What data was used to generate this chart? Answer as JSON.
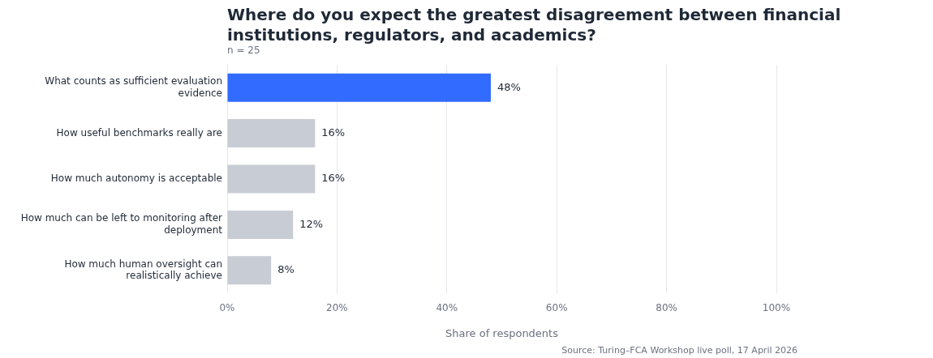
{
  "chart_data": {
    "type": "bar",
    "orientation": "horizontal",
    "title": "Where do you expect the greatest disagreement between financial institutions, regulators, and academics?",
    "subtitle": "n = 25",
    "xlabel": "Share of respondents",
    "categories": [
      "What counts as sufficient evaluation evidence",
      "How useful benchmarks really are",
      "How much autonomy is acceptable",
      "How much can be left to monitoring after deployment",
      "How much human oversight can realistically achieve"
    ],
    "values": [
      48,
      16,
      16,
      12,
      8
    ],
    "colors": [
      "#326bff",
      "#c8ccd4",
      "#c8ccd4",
      "#c8ccd4",
      "#c8ccd4"
    ],
    "value_labels": [
      "48%",
      "16%",
      "16%",
      "12%",
      "8%"
    ],
    "xlim": [
      0,
      100
    ],
    "xticks": [
      {
        "value": 0,
        "label": "0%"
      },
      {
        "value": 20,
        "label": "20%"
      },
      {
        "value": 40,
        "label": "40%"
      },
      {
        "value": 60,
        "label": "60%"
      },
      {
        "value": 80,
        "label": "80%"
      },
      {
        "value": 100,
        "label": "100%"
      }
    ],
    "grid": "x",
    "legend": false,
    "annotations": [
      "Source: Turing–FCA Workshop live poll, 17 April 2026"
    ]
  }
}
